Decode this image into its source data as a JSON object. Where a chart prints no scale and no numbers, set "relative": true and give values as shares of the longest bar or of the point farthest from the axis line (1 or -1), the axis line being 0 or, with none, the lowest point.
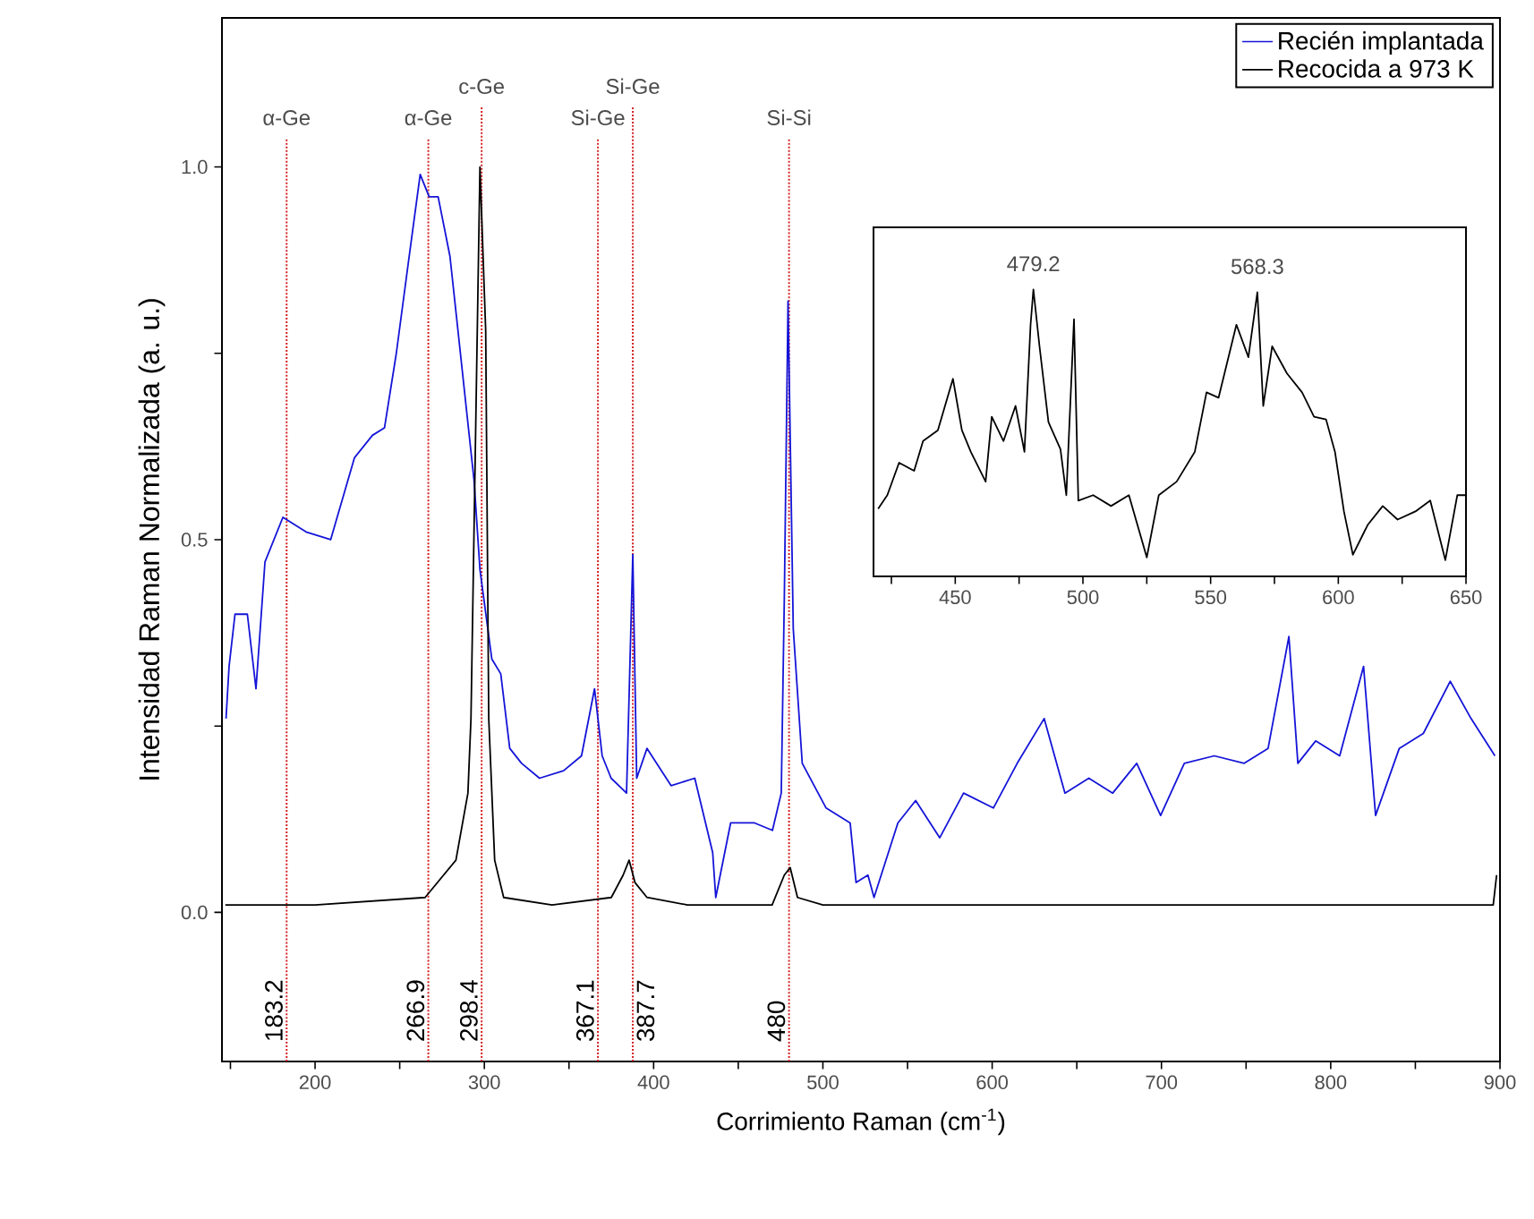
{
  "chart_data": [
    {
      "type": "line",
      "xlabel": "Corrimiento Raman (cm$^{-1}$)",
      "ylabel": "Intensidad Raman Normalizada (a. u.)",
      "xlim": [
        145,
        900
      ],
      "ylim": [
        -0.2,
        1.2
      ],
      "xticks": [
        {
          "value": 150,
          "label": null
        },
        200,
        {
          "value": 250,
          "label": null
        },
        300,
        {
          "value": 350,
          "label": null
        },
        400,
        {
          "value": 450,
          "label": null
        },
        500,
        {
          "value": 550,
          "label": null
        },
        600,
        {
          "value": 650,
          "label": null
        },
        700,
        {
          "value": 750,
          "label": null
        },
        800,
        {
          "value": 850,
          "label": null
        },
        900
      ],
      "yticks": [
        {
          "value": 0,
          "label": "0.0"
        },
        {
          "value": 0.25,
          "label": null
        },
        {
          "value": 0.5,
          "label": "0.5"
        },
        {
          "value": 0.75,
          "label": null
        },
        {
          "value": 1.0,
          "label": "1.0"
        }
      ],
      "legend": "top right",
      "series": [
        {
          "name": "Recién implantada",
          "color": "#1414d8",
          "x": [
            147.4,
            149.2,
            152.7,
            160,
            165.1,
            170.4,
            181,
            195.1,
            209.2,
            223.3,
            233.9,
            241,
            248,
            255,
            262.1,
            267.4,
            272.7,
            279.7,
            286.8,
            293.9,
            297.4,
            304.4,
            309.7,
            315,
            322,
            332.6,
            346.8,
            357.4,
            365.1,
            369.6,
            374.9,
            384,
            387.7,
            390,
            396.1,
            410.3,
            424.3,
            434.9,
            436.7,
            445.5,
            459.6,
            470.2,
            475.4,
            477.2,
            479.4,
            482.5,
            487.8,
            501.9,
            516.1,
            519.6,
            526.6,
            530.2,
            544.3,
            554.8,
            569,
            583.1,
            600.7,
            614.8,
            630.7,
            643,
            657.1,
            671.2,
            685.4,
            699.5,
            713.5,
            731.2,
            748.9,
            763,
            775.3,
            780.6,
            791.1,
            805.3,
            819.4,
            826.5,
            840.5,
            854.7,
            870.6,
            882.9,
            897
          ],
          "values": [
            0.26,
            0.33,
            0.4,
            0.4,
            0.3,
            0.47,
            0.53,
            0.51,
            0.5,
            0.61,
            0.64,
            0.65,
            0.75,
            0.87,
            0.99,
            0.96,
            0.96,
            0.88,
            0.73,
            0.58,
            0.46,
            0.34,
            0.32,
            0.22,
            0.2,
            0.18,
            0.19,
            0.21,
            0.3,
            0.21,
            0.18,
            0.16,
            0.48,
            0.18,
            0.22,
            0.17,
            0.18,
            0.08,
            0.02,
            0.12,
            0.12,
            0.11,
            0.16,
            0.42,
            0.82,
            0.38,
            0.2,
            0.14,
            0.12,
            0.04,
            0.05,
            0.02,
            0.12,
            0.15,
            0.1,
            0.16,
            0.14,
            0.2,
            0.26,
            0.16,
            0.18,
            0.16,
            0.2,
            0.13,
            0.2,
            0.21,
            0.2,
            0.22,
            0.37,
            0.2,
            0.23,
            0.21,
            0.33,
            0.13,
            0.22,
            0.24,
            0.31,
            0.26,
            0.21
          ]
        },
        {
          "name": "Recocida a 973 K",
          "color": "#000000",
          "x": [
            147,
            200,
            265,
            283.2,
            290.3,
            292.1,
            297.4,
            300.8,
            302.6,
            306.1,
            311.4,
            340,
            375,
            382,
            385.5,
            389,
            396.1,
            420,
            470,
            477.2,
            480.7,
            485,
            500,
            600,
            700,
            800,
            896,
            898
          ],
          "values": [
            0.01,
            0.01,
            0.02,
            0.07,
            0.16,
            0.26,
            1.0,
            0.78,
            0.26,
            0.07,
            0.02,
            0.01,
            0.02,
            0.05,
            0.07,
            0.04,
            0.02,
            0.01,
            0.01,
            0.05,
            0.06,
            0.02,
            0.01,
            0.01,
            0.01,
            0.01,
            0.01,
            0.05
          ]
        }
      ],
      "ref_lines": [
        {
          "axis": "x",
          "value": 183.2,
          "label": "183.2",
          "color": "#d42020",
          "line_style": "dotted"
        },
        {
          "axis": "x",
          "value": 266.9,
          "label": "266.9",
          "color": "#d42020",
          "line_style": "dotted"
        },
        {
          "axis": "x",
          "value": 298.4,
          "label": "298.4",
          "color": "#d42020",
          "line_style": "dotted"
        },
        {
          "axis": "x",
          "value": 367.1,
          "label": "367.1",
          "color": "#d42020",
          "line_style": "dotted"
        },
        {
          "axis": "x",
          "value": 387.7,
          "label": "387.7",
          "color": "#d42020",
          "line_style": "dotted"
        },
        {
          "axis": "x",
          "value": 480,
          "label": "480",
          "color": "#d42020",
          "line_style": "dotted"
        }
      ],
      "annotations": [
        "α-Ge",
        "α-Ge",
        "c-Ge",
        "Si-Ge",
        "Si-Ge",
        "Si-Si"
      ]
    },
    {
      "type": "line",
      "relative": true,
      "tick_labels": "x",
      "xlim": [
        418,
        650
      ],
      "xticks": [
        {
          "value": 425,
          "label": null
        },
        450,
        {
          "value": 475,
          "label": null
        },
        500,
        {
          "value": 525,
          "label": null
        },
        550,
        {
          "value": 575,
          "label": null
        },
        600,
        {
          "value": 625,
          "label": null
        },
        650
      ],
      "series": [
        {
          "color": "#000000",
          "x": [
            419.8,
            423.4,
            428.0,
            433.9,
            437.4,
            443.2,
            449.1,
            452.6,
            456.1,
            461.9,
            464.3,
            468.9,
            473.6,
            477.1,
            479.5,
            480.6,
            483.0,
            486.5,
            491.2,
            493.5,
            496.5,
            498.2,
            504.0,
            511.0,
            518.0,
            525.0,
            529.7,
            536.7,
            543.8,
            548.4,
            553.1,
            560.1,
            564.8,
            568.3,
            570.6,
            574.1,
            579.9,
            585.8,
            590.5,
            595.2,
            598.7,
            602.2,
            605.7,
            611.5,
            617.4,
            623.2,
            630.2,
            636.0,
            641.9,
            646.6,
            650
          ],
          "values": [
            0.19,
            0.24,
            0.36,
            0.33,
            0.44,
            0.48,
            0.67,
            0.48,
            0.4,
            0.29,
            0.53,
            0.44,
            0.57,
            0.4,
            0.87,
            1.0,
            0.79,
            0.51,
            0.41,
            0.24,
            0.89,
            0.22,
            0.24,
            0.2,
            0.24,
            0.01,
            0.24,
            0.29,
            0.4,
            0.62,
            0.6,
            0.87,
            0.75,
            0.99,
            0.57,
            0.79,
            0.69,
            0.62,
            0.53,
            0.52,
            0.4,
            0.18,
            0.02,
            0.13,
            0.2,
            0.15,
            0.18,
            0.22,
            0.0,
            0.24,
            0.24
          ]
        }
      ],
      "annotations": [
        "479.2",
        "568.3"
      ]
    }
  ]
}
